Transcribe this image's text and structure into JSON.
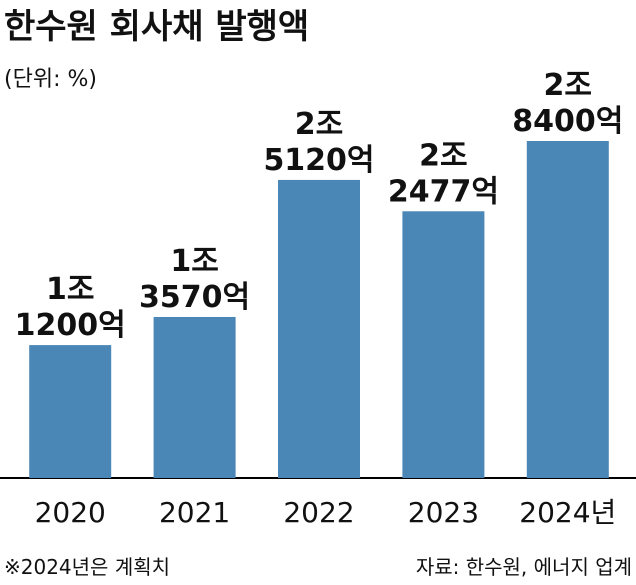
{
  "chart_data": {
    "type": "bar",
    "title": "한수원 회사채 발행액",
    "subtitle": "(단위: %)",
    "categories": [
      "2020",
      "2021",
      "2022",
      "2023",
      "2024년"
    ],
    "values": [
      11200,
      13570,
      25120,
      22477,
      28400
    ],
    "value_labels": [
      [
        "1조",
        "1200억"
      ],
      [
        "1조",
        "3570억"
      ],
      [
        "2조",
        "5120억"
      ],
      [
        "2조",
        "2477억"
      ],
      [
        "2조",
        "8400억"
      ]
    ],
    "color": "#4a86b6",
    "note": "※2024년은 계획치",
    "source": "자료: 한수원, 에너지 업계"
  }
}
